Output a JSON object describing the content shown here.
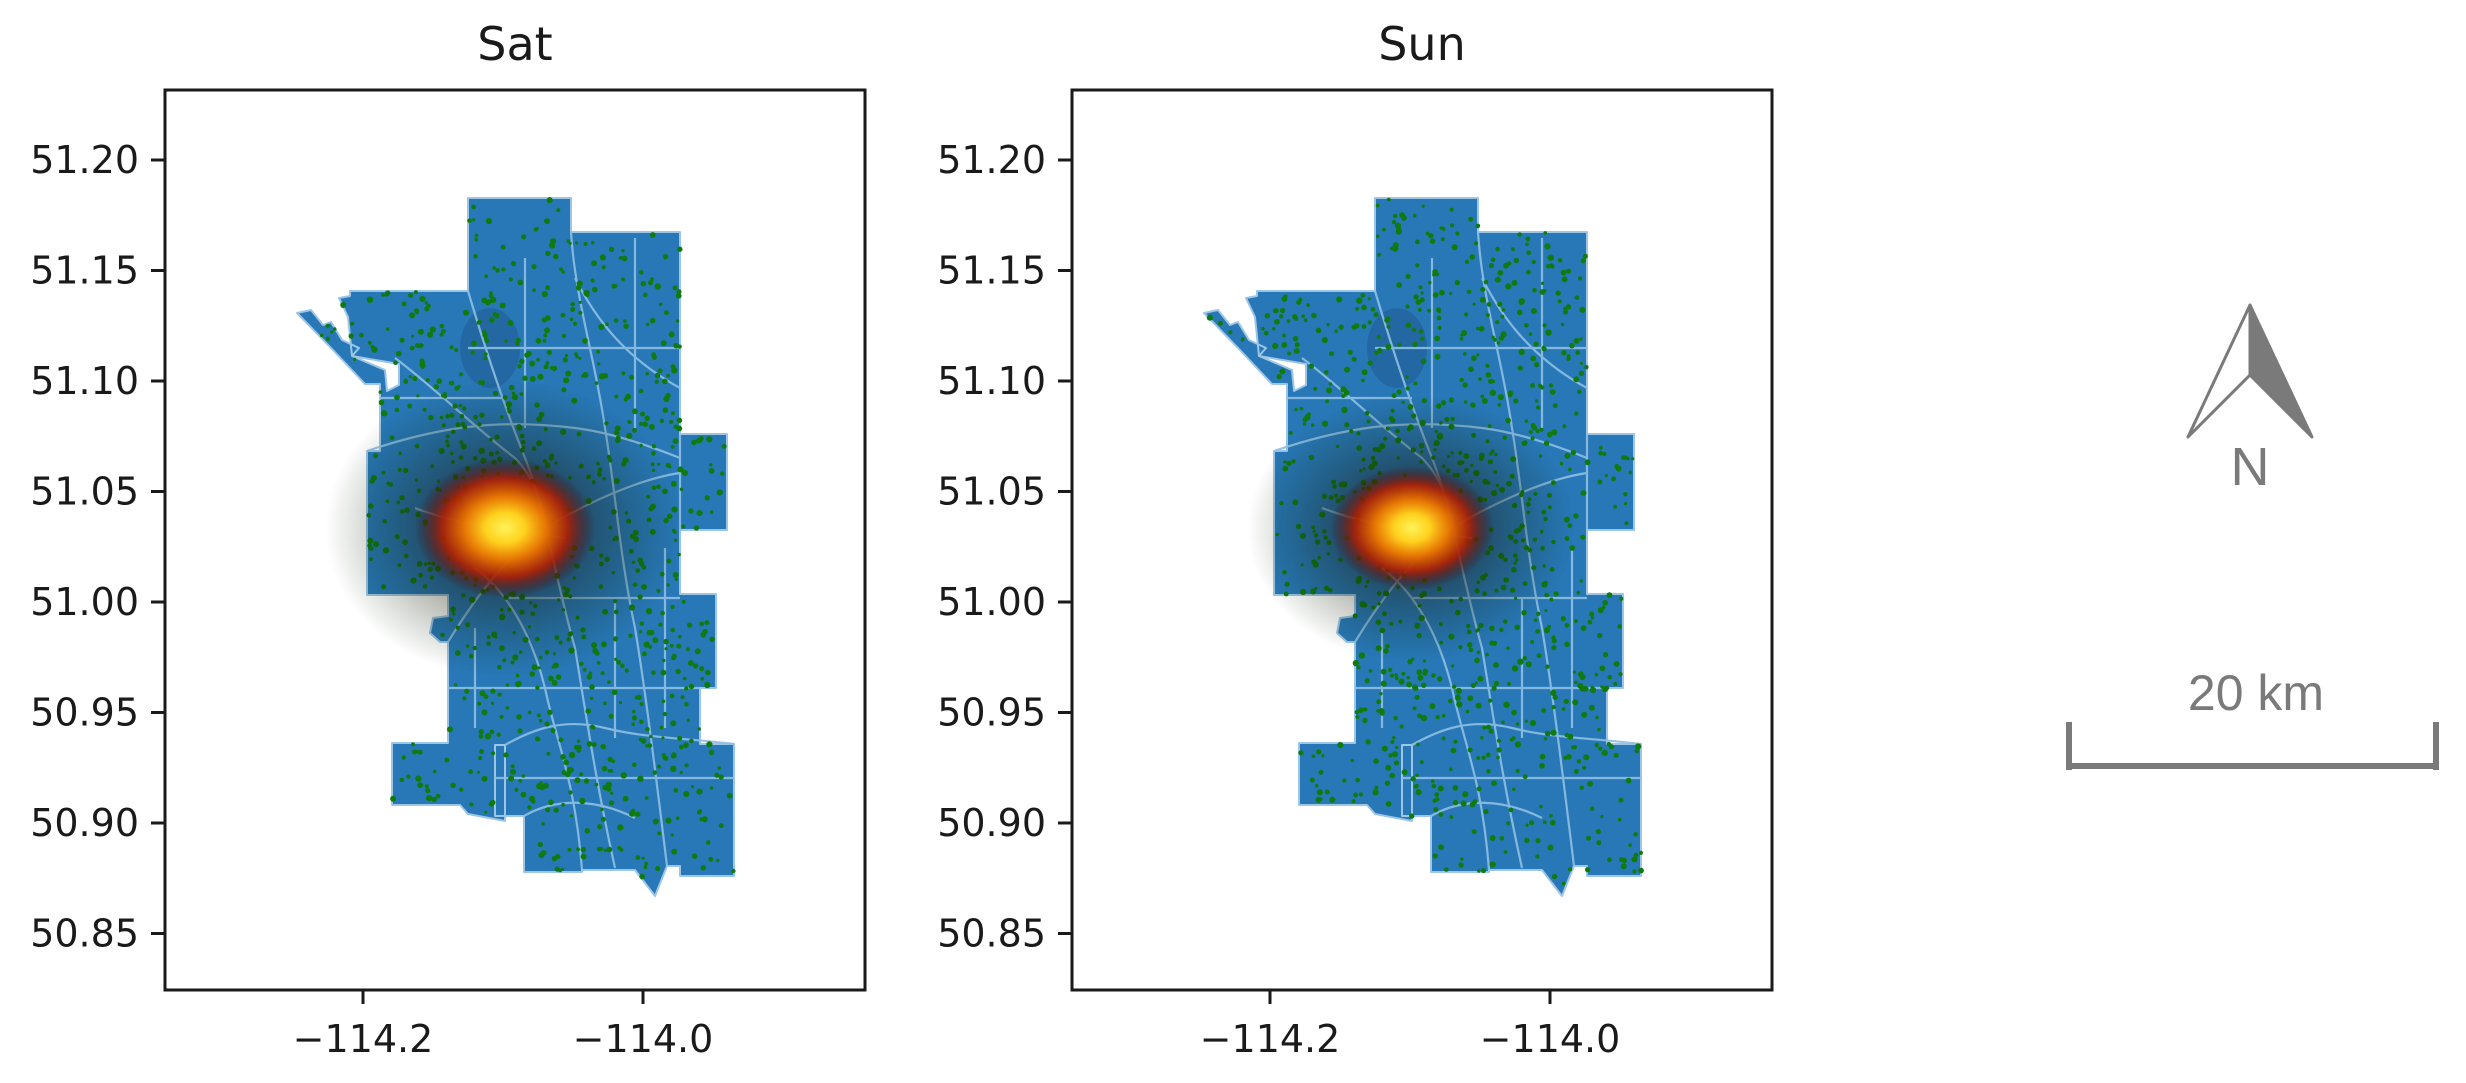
{
  "maps": [
    {
      "title": "Sat",
      "yticks": [
        "51.20",
        "51.15",
        "51.10",
        "51.05",
        "51.00",
        "50.95",
        "50.90",
        "50.85"
      ],
      "xticks": [
        "−114.2",
        "−114.0"
      ]
    },
    {
      "title": "Sun",
      "yticks": [
        "51.20",
        "51.15",
        "51.10",
        "51.05",
        "51.00",
        "50.95",
        "50.90",
        "50.85"
      ],
      "xticks": [
        "−114.2",
        "−114.0"
      ]
    }
  ],
  "north_arrow": {
    "label": "N"
  },
  "scale_bar": {
    "label": "20 km"
  },
  "colors": {
    "city_fill": "#2878b8",
    "boundary_lines": "#9cc5e6",
    "point_density_low": "#0f7a0f",
    "point_density_mid": "#b81e00",
    "point_density_high": "#ffe640"
  }
}
